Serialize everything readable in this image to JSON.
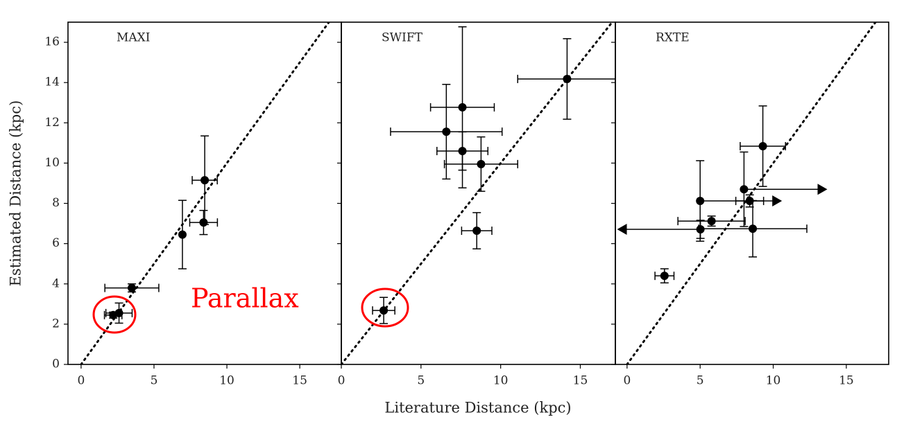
{
  "chart_data": [
    {
      "type": "scatter",
      "title": "MAXI",
      "ylabel": "Estimated Distance (kpc)",
      "annotation": "Parallax",
      "color": "#000000",
      "annotation_color": "#ff0000",
      "xlim": [
        -0.9,
        17.85
      ],
      "ylim": [
        0,
        17
      ],
      "xticks": [
        0,
        5,
        10,
        15
      ],
      "yticks": [
        0,
        2,
        4,
        6,
        8,
        10,
        12,
        14,
        16
      ],
      "x": [
        8.48,
        8.4,
        6.95,
        3.48,
        2.6,
        2.2
      ],
      "values": [
        9.15,
        7.05,
        6.45,
        3.8,
        2.55,
        2.45
      ],
      "xerr": [
        0.86,
        0.95,
        0,
        1.85,
        0.9,
        0.6
      ],
      "yerr": [
        2.2,
        0.6,
        1.7,
        0.2,
        0.5,
        0.15
      ],
      "xlolims": [
        false,
        false,
        false,
        false,
        false,
        false
      ],
      "xuplims": [
        false,
        false,
        false,
        false,
        false,
        false
      ]
    },
    {
      "type": "scatter",
      "title": "SWIFT",
      "xlabel": "Literature Distance (kpc)",
      "color": "#000000",
      "xlim": [
        0,
        17.2
      ],
      "ylim": [
        0,
        17
      ],
      "xticks": [
        0,
        5,
        10,
        15
      ],
      "yticks": [
        0,
        2,
        4,
        6,
        8,
        10,
        12,
        14,
        16
      ],
      "x": [
        14.17,
        7.6,
        6.59,
        7.6,
        8.77,
        8.5,
        2.66
      ],
      "values": [
        14.18,
        12.77,
        11.56,
        10.6,
        9.95,
        6.64,
        2.68
      ],
      "xerr": [
        3.1,
        2.0,
        3.5,
        1.6,
        2.3,
        0.95,
        0.7
      ],
      "yerr": [
        2.0,
        4.0,
        2.35,
        0.95,
        1.35,
        0.9,
        0.65
      ],
      "xlolims": [
        false,
        false,
        false,
        false,
        false,
        false,
        false
      ],
      "xuplims": [
        false,
        false,
        false,
        false,
        false,
        false,
        false
      ]
    },
    {
      "type": "scatter",
      "title": "RXTE",
      "color": "#000000",
      "xlim": [
        -0.8,
        17.9
      ],
      "ylim": [
        0,
        17
      ],
      "xticks": [
        0,
        5,
        10,
        15
      ],
      "yticks": [
        0,
        2,
        4,
        6,
        8,
        10,
        12,
        14,
        16
      ],
      "x": [
        9.29,
        8.0,
        5.0,
        8.39,
        5.78,
        5.02,
        8.6,
        2.56
      ],
      "values": [
        10.84,
        8.7,
        8.12,
        8.12,
        7.12,
        6.71,
        6.74,
        4.4
      ],
      "xerr": [
        1.55,
        5.7,
        5.6,
        0.95,
        2.3,
        5.7,
        3.7,
        0.65
      ],
      "yerr": [
        2.0,
        1.85,
        2.0,
        0.3,
        0.25,
        0.45,
        1.4,
        0.35
      ],
      "xlolims": [
        false,
        true,
        true,
        false,
        false,
        false,
        false,
        false
      ],
      "xuplims": [
        false,
        false,
        false,
        false,
        false,
        true,
        false,
        false
      ]
    }
  ]
}
